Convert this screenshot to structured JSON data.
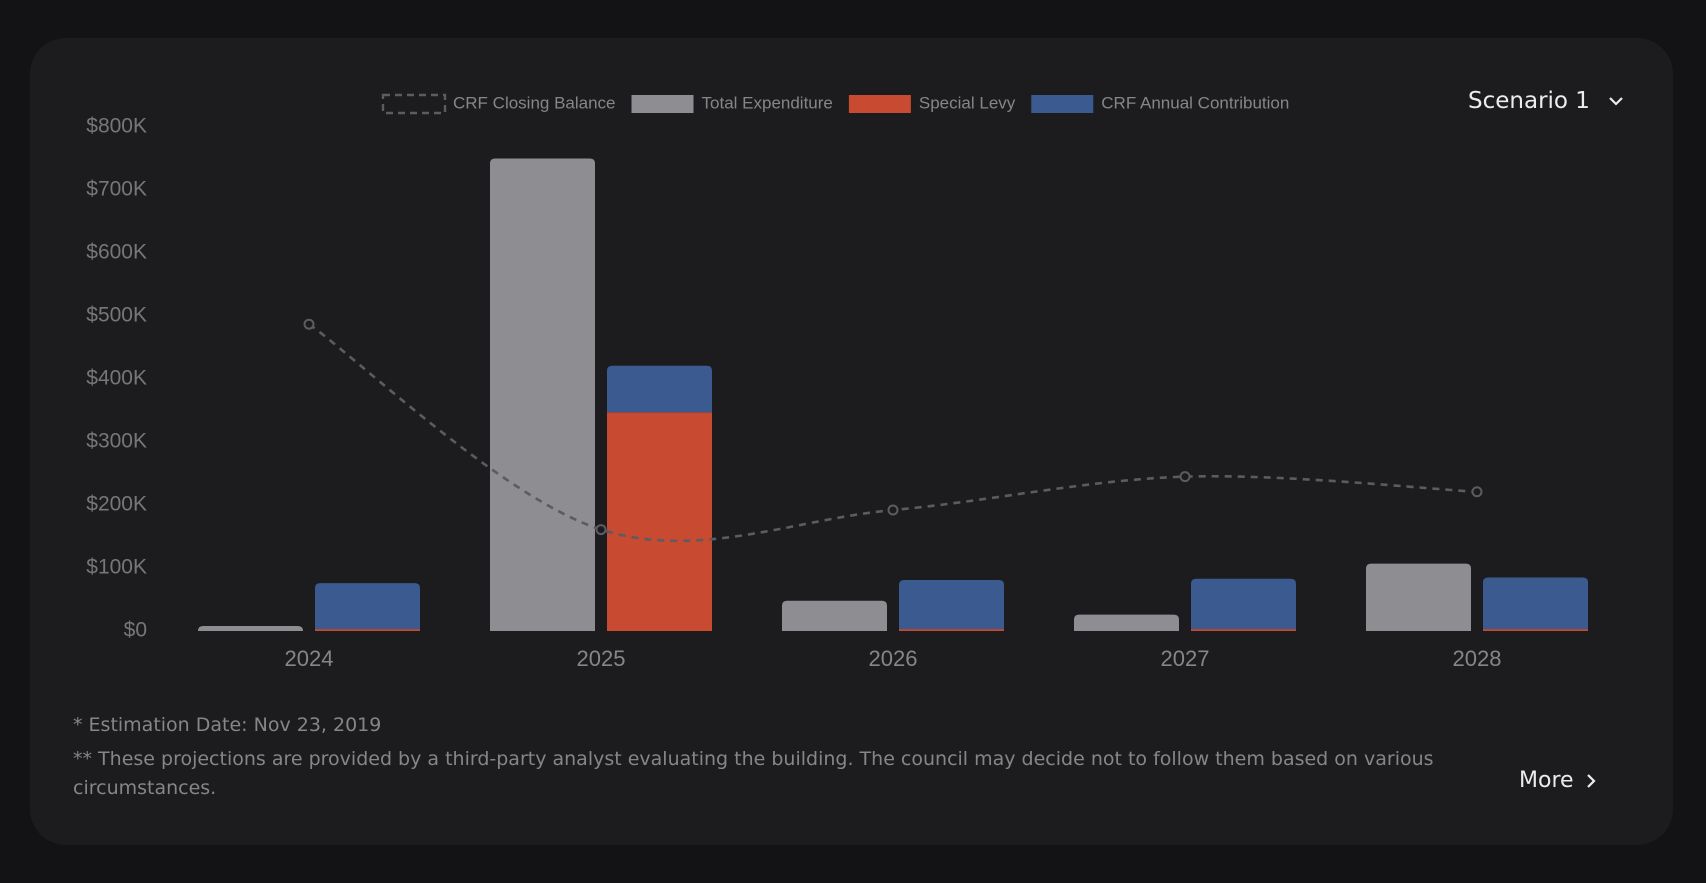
{
  "chart_data": {
    "type": "bar",
    "categories": [
      "2024",
      "2025",
      "2026",
      "2027",
      "2028"
    ],
    "series": [
      {
        "name": "CRF Closing Balance",
        "type": "line",
        "color": "#5c5c60",
        "values": [
          487000,
          161000,
          192000,
          245000,
          221000
        ]
      },
      {
        "name": "Total Expenditure",
        "color": "#8e8d92",
        "values": [
          8000,
          750000,
          48000,
          26000,
          107000
        ]
      },
      {
        "name": "Special Levy",
        "color": "#c84a30",
        "stack": "funding",
        "values": [
          3000,
          347000,
          3000,
          3000,
          3000
        ]
      },
      {
        "name": "CRF Annual Contribution",
        "color": "#3b5a8f",
        "stack": "funding",
        "values": [
          73000,
          74000,
          78000,
          80000,
          82000
        ]
      }
    ],
    "ylim": [
      0,
      800000
    ],
    "yticks": [
      {
        "value": 0,
        "label": "$0"
      },
      {
        "value": 100000,
        "label": "$100K"
      },
      {
        "value": 200000,
        "label": "$200K"
      },
      {
        "value": 300000,
        "label": "$300K"
      },
      {
        "value": 400000,
        "label": "$400K"
      },
      {
        "value": 500000,
        "label": "$500K"
      },
      {
        "value": 600000,
        "label": "$600K"
      },
      {
        "value": 700000,
        "label": "$700K"
      },
      {
        "value": 800000,
        "label": "$800K"
      }
    ],
    "grid": false
  },
  "controls": {
    "scenario": "Scenario 1",
    "more": "More"
  },
  "footnotes": [
    "* Estimation Date: Nov 23, 2019",
    "** These projections are provided by a third-party analyst evaluating the building. The council may decide not to follow them based on various circumstances."
  ]
}
